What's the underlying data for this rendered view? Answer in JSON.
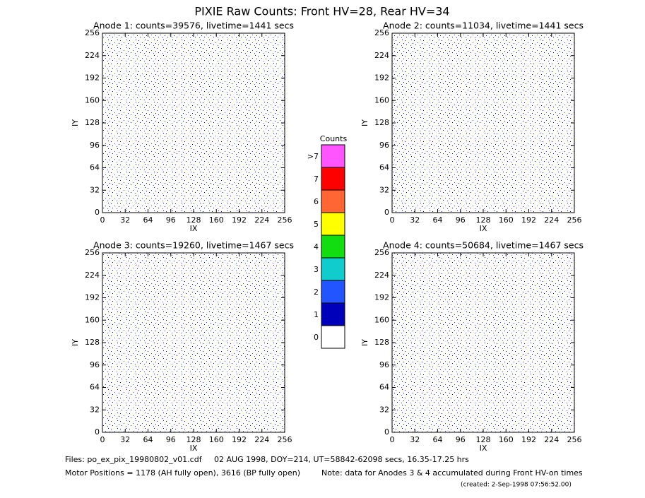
{
  "title": "PIXIE Raw Counts:  Front HV=28, Rear HV=34",
  "chart_data": [
    {
      "type": "heatmap",
      "title": "Anode 1: counts=39576, livetime=1441 secs",
      "xlabel": "IX",
      "ylabel": "IY",
      "xlim": [
        0,
        256
      ],
      "ylim": [
        0,
        256
      ],
      "xticks": [
        0,
        32,
        64,
        96,
        128,
        160,
        192,
        224,
        256
      ],
      "yticks": [
        0,
        32,
        64,
        96,
        128,
        160,
        192,
        224,
        256
      ]
    },
    {
      "type": "heatmap",
      "title": "Anode 2: counts=11034, livetime=1441 secs",
      "xlabel": "IX",
      "ylabel": "IY",
      "xlim": [
        0,
        256
      ],
      "ylim": [
        0,
        256
      ],
      "xticks": [
        0,
        32,
        64,
        96,
        128,
        160,
        192,
        224,
        256
      ],
      "yticks": [
        0,
        32,
        64,
        96,
        128,
        160,
        192,
        224,
        256
      ]
    },
    {
      "type": "heatmap",
      "title": "Anode 3: counts=19260, livetime=1467 secs",
      "xlabel": "IX",
      "ylabel": "IY",
      "xlim": [
        0,
        256
      ],
      "ylim": [
        0,
        256
      ],
      "xticks": [
        0,
        32,
        64,
        96,
        128,
        160,
        192,
        224,
        256
      ],
      "yticks": [
        0,
        32,
        64,
        96,
        128,
        160,
        192,
        224,
        256
      ]
    },
    {
      "type": "heatmap",
      "title": "Anode 4: counts=50684, livetime=1467 secs",
      "xlabel": "IX",
      "ylabel": "IY",
      "xlim": [
        0,
        256
      ],
      "ylim": [
        0,
        256
      ],
      "xticks": [
        0,
        32,
        64,
        96,
        128,
        160,
        192,
        224,
        256
      ],
      "yticks": [
        0,
        32,
        64,
        96,
        128,
        160,
        192,
        224,
        256
      ]
    }
  ],
  "colorbar": {
    "title": "Counts",
    "ticks": [
      0,
      1,
      2,
      3,
      4,
      5,
      6,
      7,
      {
        "value": 8,
        "label": ">7"
      }
    ],
    "colors": [
      "#ffffff",
      "#0000bb",
      "#2255ff",
      "#11cccc",
      "#11dd11",
      "#ffff00",
      "#ff6633",
      "#ff0000",
      "#ff55ff"
    ]
  },
  "footer": {
    "files": "Files: po_ex_pix_19980802_v01.cdf",
    "date": "02 AUG 1998, DOY=214, UT=58842-62098 secs, 16.35-17.25 hrs",
    "motor": "Motor Positions = 1178 (AH fully open), 3616 (BP fully open)",
    "note": "Note: data for Anodes 3 & 4 accumulated during Front HV-on times",
    "created": "(created:  2-Sep-1998 07:56:52.00)"
  }
}
